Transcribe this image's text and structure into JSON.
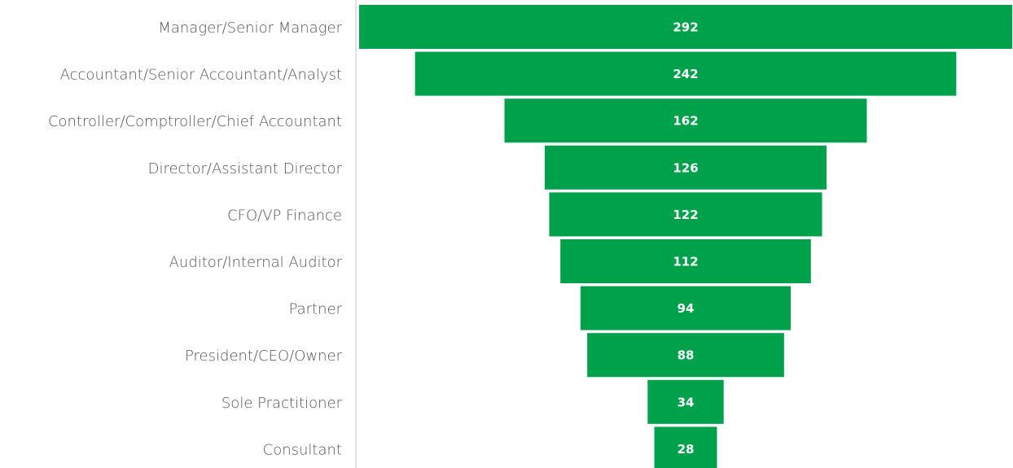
{
  "chart_data": {
    "type": "funnel",
    "categories": [
      "Manager/Senior Manager",
      "Accountant/Senior Accountant/Analyst",
      "Controller/Comptroller/Chief Accountant",
      "Director/Assistant Director",
      "CFO/VP Finance",
      "Auditor/Internal Auditor",
      "Partner",
      "President/CEO/Owner",
      "Sole Practitioner",
      "Consultant"
    ],
    "values": [
      292,
      242,
      162,
      126,
      122,
      112,
      94,
      88,
      34,
      28
    ],
    "color": "#00a14b"
  }
}
